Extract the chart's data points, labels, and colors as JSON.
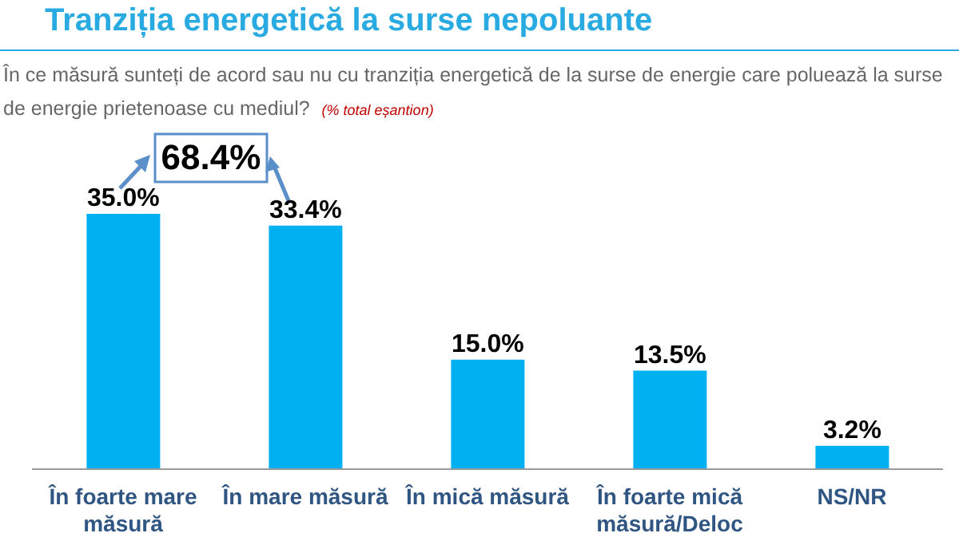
{
  "chart_data": {
    "type": "bar",
    "title": "Tranziția energetică la surse nepoluante",
    "subtitle": "În ce măsură sunteți de acord sau nu cu tranziția energetică de la surse de energie care poluează la surse de energie prietenoase cu mediul?",
    "annotations": [
      "(% total eșantion)",
      "68.4%"
    ],
    "categories": [
      "În foarte mare măsură",
      "În mare măsură",
      "În mică măsură",
      "În foarte mică măsură/Deloc",
      "NS/NR"
    ],
    "values": [
      35.0,
      33.4,
      15.0,
      13.5,
      3.2
    ],
    "value_labels": [
      "35.0%",
      "33.4%",
      "15.0%",
      "13.5%",
      "3.2%"
    ],
    "color": "#00b0f0",
    "grid": false,
    "legend": false
  }
}
